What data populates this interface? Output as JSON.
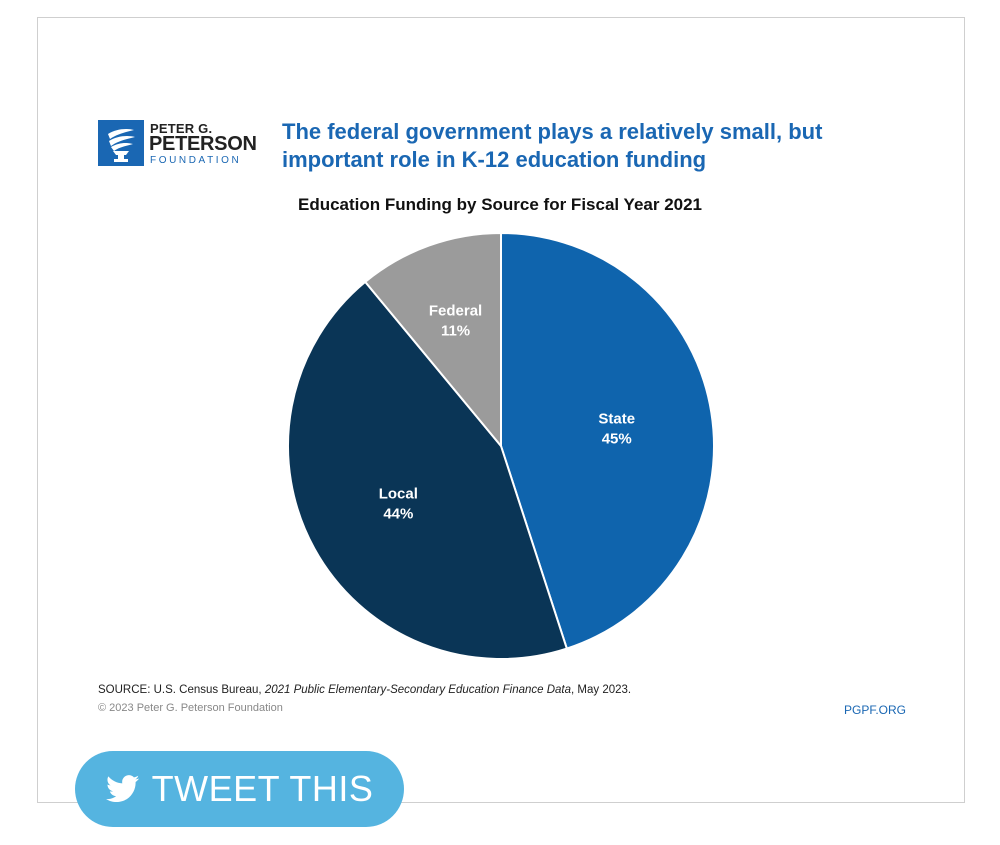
{
  "logo": {
    "line1": "PETER G.",
    "line2": "PETERSON",
    "line3": "FOUNDATION",
    "icon": "torch-icon"
  },
  "headline": {
    "line1": "The federal government plays a relatively small, but",
    "line2": "important role in K-12 education funding"
  },
  "chart_data": {
    "type": "pie",
    "title": "Education Funding by Source for Fiscal Year 2021",
    "slices": [
      {
        "label": "State",
        "value": 45,
        "display": "45%",
        "color": "#0f64ad"
      },
      {
        "label": "Local",
        "value": 44,
        "display": "44%",
        "color": "#0a3556"
      },
      {
        "label": "Federal",
        "value": 11,
        "display": "11%",
        "color": "#9b9b9b"
      }
    ],
    "start": "12 o'clock",
    "direction": "clockwise"
  },
  "footer": {
    "source_prefix": "SOURCE: U.S. Census Bureau, ",
    "source_title": "2021 Public Elementary-Secondary Education Finance Data",
    "source_suffix": ", May 2023.",
    "copyright": "© 2023 Peter G. Peterson Foundation",
    "site": "PGPF.ORG"
  },
  "tweet": {
    "label": "TWEET THIS",
    "icon": "twitter-bird-icon",
    "color": "#55b4e0"
  },
  "colors": {
    "brand_blue": "#1a67b3",
    "title_text": "#111111"
  }
}
